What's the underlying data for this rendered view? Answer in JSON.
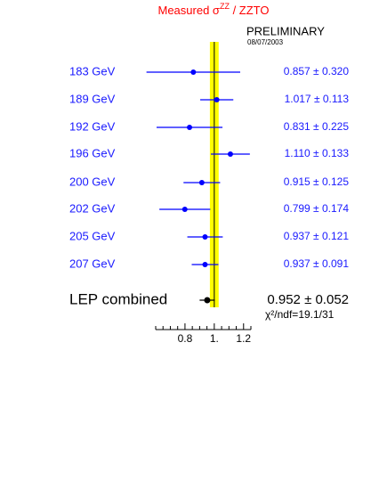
{
  "chart_data": {
    "type": "forest",
    "title": {
      "main": "Measured σ",
      "sup": "ZZ",
      "rest": " / ZZTO"
    },
    "annotations": {
      "status": "PRELIMINARY",
      "date": "08/07/2003",
      "fit": "χ²/ndf=19.1/31"
    },
    "categories": [
      "183 GeV",
      "189 GeV",
      "192 GeV",
      "196 GeV",
      "200 GeV",
      "202 GeV",
      "205 GeV",
      "207 GeV",
      "LEP combined"
    ],
    "values": [
      0.857,
      1.017,
      0.831,
      1.11,
      0.915,
      0.799,
      0.937,
      0.937,
      0.952
    ],
    "errors": [
      0.32,
      0.113,
      0.225,
      0.133,
      0.125,
      0.174,
      0.121,
      0.091,
      0.052
    ],
    "value_labels": [
      "0.857 ± 0.320",
      "1.017 ± 0.113",
      "0.831 ± 0.225",
      "1.110 ± 0.133",
      "0.915 ± 0.125",
      "0.799 ± 0.174",
      "0.937 ± 0.121",
      "0.937 ± 0.091",
      "0.952 ± 0.052"
    ],
    "point_colors": [
      "#0000ff",
      "#0000ff",
      "#0000ff",
      "#0000ff",
      "#0000ff",
      "#0000ff",
      "#0000ff",
      "#0000ff",
      "#000000"
    ],
    "label_color": "#1a1aff",
    "title_color": "#ff0000",
    "band": [
      0.97,
      1.03
    ],
    "band_color": "#ffff00",
    "reference": 1,
    "xlim": [
      0.6,
      1.25
    ],
    "xticks": [
      0.8,
      {
        "value": 1,
        "label": "1."
      },
      1.2
    ],
    "xminorticks": [
      0.6,
      0.65,
      0.7,
      0.75,
      0.85,
      0.9,
      0.95,
      1.05,
      1.1,
      1.15,
      1.25
    ]
  }
}
